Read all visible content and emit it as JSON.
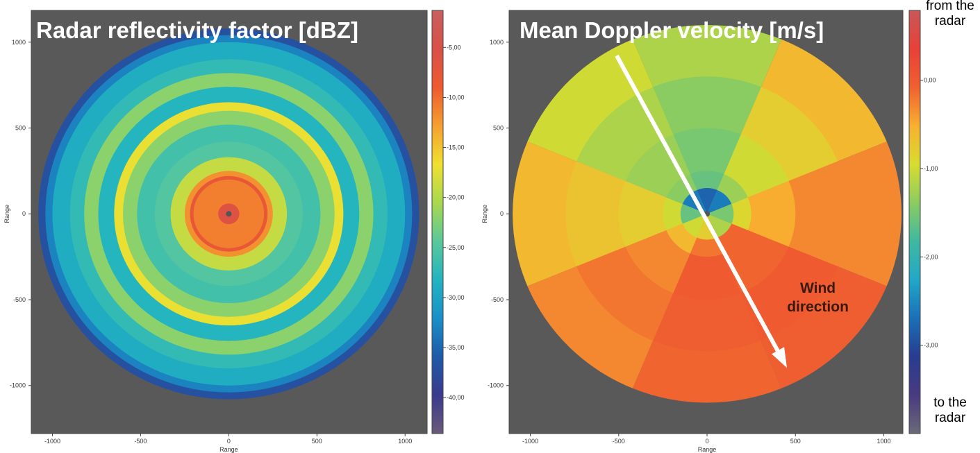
{
  "chart_data": [
    {
      "type": "radar-ppi",
      "title": "Radar reflectivity factor [dBZ]",
      "xlabel": "Range",
      "ylabel": "Range",
      "xlim": [
        -1120,
        1125
      ],
      "ylim": [
        -1280,
        1185
      ],
      "xticks": [
        -1000,
        -500,
        0,
        500,
        1000
      ],
      "yticks": [
        -1000,
        -500,
        0,
        500,
        1000
      ],
      "clim": [
        -43.6,
        -1.3
      ],
      "cticks": [
        {
          "value": -5,
          "label": "-5,00"
        },
        {
          "value": -10,
          "label": "-10,00"
        },
        {
          "value": -15,
          "label": "-15,00"
        },
        {
          "value": -20,
          "label": "-20,00"
        },
        {
          "value": -25,
          "label": "-25,00"
        },
        {
          "value": -30,
          "label": "-30,00"
        },
        {
          "value": -35,
          "label": "-35,00"
        },
        {
          "value": -40,
          "label": "-40,00"
        }
      ],
      "colormap": [
        "#6a5a7a",
        "#3a3a8c",
        "#1e5aa8",
        "#1a90c8",
        "#22b4c0",
        "#5cc89a",
        "#a8d850",
        "#f0e030",
        "#f5a030",
        "#ee5a30",
        "#d85048",
        "#c86060"
      ],
      "background": "#595959",
      "rings": [
        {
          "r": 1080,
          "value": -37
        },
        {
          "r": 1040,
          "value": -33
        },
        {
          "r": 1000,
          "value": -29
        },
        {
          "r": 900,
          "value": -27
        },
        {
          "r": 820,
          "value": -22
        },
        {
          "r": 740,
          "value": -28
        },
        {
          "r": 650,
          "value": -17
        },
        {
          "r": 600,
          "value": -22
        },
        {
          "r": 520,
          "value": -26
        },
        {
          "r": 420,
          "value": -25
        },
        {
          "r": 330,
          "value": -19
        },
        {
          "r": 250,
          "value": -12
        },
        {
          "r": 220,
          "value": -8
        },
        {
          "r": 200,
          "value": -11
        },
        {
          "r": 60,
          "value": -6
        }
      ]
    },
    {
      "type": "radar-ppi-sectors",
      "title": "Mean Doppler velocity [m/s]",
      "xlabel": "Range",
      "ylabel": "Range",
      "xlim": [
        -1120,
        1108
      ],
      "ylim": [
        -1280,
        1185
      ],
      "xticks": [
        -1000,
        -500,
        0,
        500,
        1000
      ],
      "yticks": [
        -1000,
        -500,
        0,
        500,
        1000
      ],
      "clim": [
        -4.0,
        0.79
      ],
      "cticks": [
        {
          "value": 0,
          "label": "0,00"
        },
        {
          "value": -1,
          "label": "-1,00"
        },
        {
          "value": -2,
          "label": "-2,00"
        },
        {
          "value": -3,
          "label": "-3,00"
        }
      ],
      "colormap": [
        "#6a6a78",
        "#4a3a80",
        "#283c90",
        "#1a70b8",
        "#20a8c8",
        "#40b8a0",
        "#8ccc60",
        "#d8dc30",
        "#f8b030",
        "#f06030",
        "#e84038",
        "#c85858"
      ],
      "background": "#595959",
      "colorbar_top_label": "from the radar",
      "colorbar_bottom_label": "to the radar",
      "annotation": "Wind direction",
      "rings": [
        {
          "r": 1100,
          "values": [
            -1.2,
            -0.6,
            -0.3,
            -0.05,
            -0.1,
            -0.3,
            -0.6,
            -1.0
          ]
        },
        {
          "r": 800,
          "values": [
            -1.4,
            -0.8,
            -0.3,
            0.0,
            -0.05,
            -0.2,
            -0.7,
            -1.2
          ]
        },
        {
          "r": 500,
          "values": [
            -1.5,
            -1.0,
            -0.5,
            -0.1,
            0.0,
            -0.3,
            -0.8,
            -1.3
          ]
        },
        {
          "r": 250,
          "values": [
            -1.6,
            -1.3,
            -0.9,
            -0.1,
            -0.2,
            -0.6,
            -1.0,
            -1.4
          ]
        },
        {
          "r": 150,
          "values": [
            -2.8,
            -2.6,
            -1.5,
            -1.2,
            -0.8,
            -1.0,
            -1.6,
            -2.6
          ]
        }
      ]
    }
  ]
}
